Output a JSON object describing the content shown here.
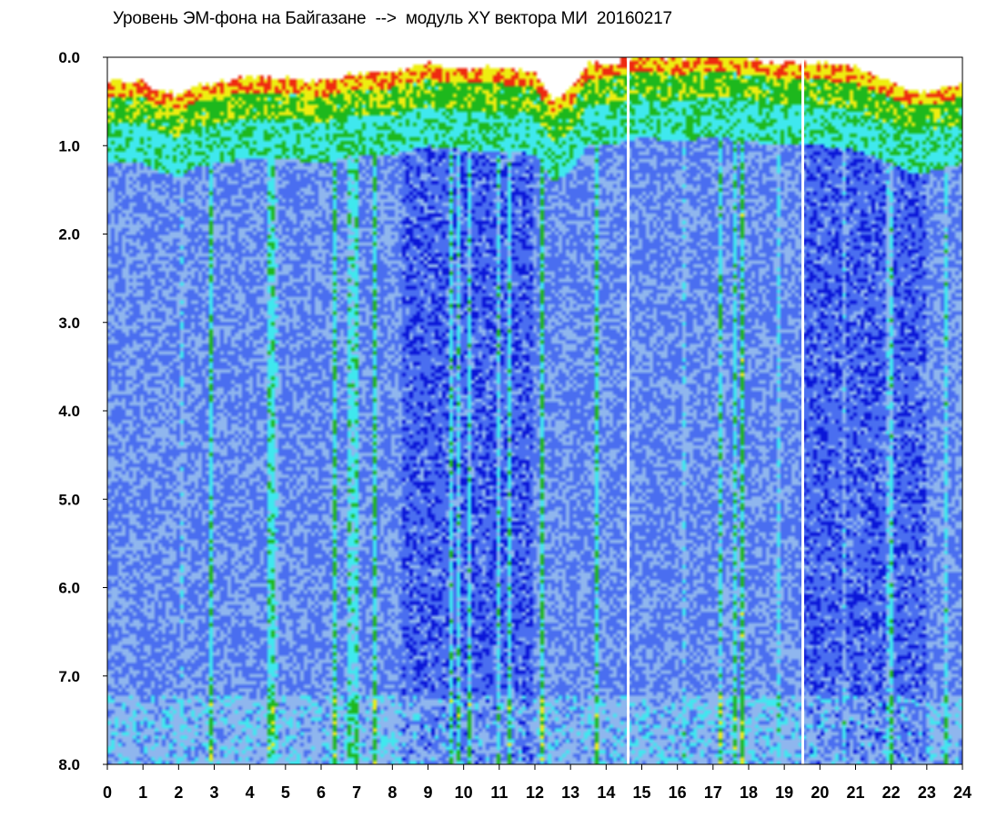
{
  "chart_data": {
    "type": "heatmap",
    "title": "Уровень ЭМ-фона на Байгазане  -->  модуль XY вектора МИ  20160217",
    "xlabel": "",
    "ylabel": "",
    "xlim": [
      0,
      24
    ],
    "ylim": [
      0,
      8
    ],
    "y_inverted": true,
    "x_ticks": [
      "0",
      "1",
      "2",
      "3",
      "4",
      "5",
      "6",
      "7",
      "8",
      "9",
      "10",
      "11",
      "12",
      "13",
      "14",
      "15",
      "16",
      "17",
      "18",
      "19",
      "20",
      "21",
      "22",
      "23",
      "24"
    ],
    "y_ticks": [
      "0.0",
      "1.0",
      "2.0",
      "3.0",
      "4.0",
      "5.0",
      "6.0",
      "7.0",
      "8.0"
    ],
    "colorscale": [
      "#0a16d8",
      "#4a6ef0",
      "#8fb6ee",
      "#3fe8ee",
      "#1db81d",
      "#eeee10",
      "#ee2a10"
    ],
    "top_envelope_y": [
      [
        0.0,
        0.3
      ],
      [
        0.5,
        0.3
      ],
      [
        1.0,
        0.3
      ],
      [
        1.5,
        0.4
      ],
      [
        2.0,
        0.45
      ],
      [
        2.5,
        0.35
      ],
      [
        3.0,
        0.3
      ],
      [
        4.0,
        0.25
      ],
      [
        5.0,
        0.25
      ],
      [
        6.0,
        0.3
      ],
      [
        7.0,
        0.2
      ],
      [
        8.0,
        0.2
      ],
      [
        9.0,
        0.1
      ],
      [
        10.0,
        0.15
      ],
      [
        11.0,
        0.15
      ],
      [
        12.0,
        0.2
      ],
      [
        12.5,
        0.5
      ],
      [
        13.0,
        0.4
      ],
      [
        13.5,
        0.1
      ],
      [
        14.0,
        0.1
      ],
      [
        14.5,
        0.05
      ],
      [
        15.0,
        0.0
      ],
      [
        16.0,
        0.05
      ],
      [
        17.0,
        0.0
      ],
      [
        18.0,
        0.05
      ],
      [
        19.0,
        0.1
      ],
      [
        20.0,
        0.1
      ],
      [
        21.0,
        0.15
      ],
      [
        22.0,
        0.3
      ],
      [
        22.5,
        0.4
      ],
      [
        23.0,
        0.4
      ],
      [
        23.5,
        0.35
      ],
      [
        24.0,
        0.3
      ]
    ],
    "gap_lines_x": [
      14.62,
      19.52
    ],
    "grid": false,
    "legend": "none"
  }
}
